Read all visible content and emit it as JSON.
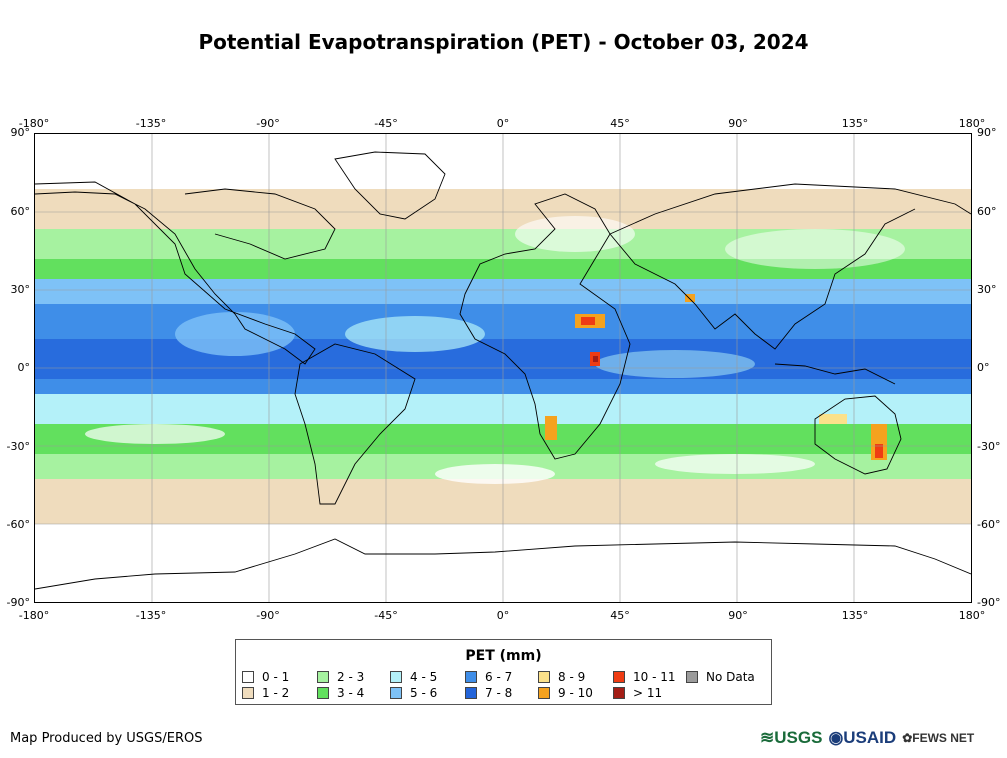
{
  "title": "Potential Evapotranspiration (PET) - October 03, 2024",
  "map": {
    "lon_ticks": [
      "-180°",
      "-135°",
      "-90°",
      "-45°",
      "0°",
      "45°",
      "90°",
      "135°",
      "180°"
    ],
    "lat_ticks": [
      "90°",
      "60°",
      "30°",
      "0°",
      "-30°",
      "-60°",
      "-90°"
    ]
  },
  "legend": {
    "title": "PET (mm)",
    "items": [
      {
        "label": "0 - 1",
        "color": "#ffffff"
      },
      {
        "label": "1 - 2",
        "color": "#efdcbd"
      },
      {
        "label": "2 - 3",
        "color": "#a6f2a0"
      },
      {
        "label": "3 - 4",
        "color": "#62e05e"
      },
      {
        "label": "4 - 5",
        "color": "#b4f1f9"
      },
      {
        "label": "5 - 6",
        "color": "#7ec2f7"
      },
      {
        "label": "6 - 7",
        "color": "#3f8ee8"
      },
      {
        "label": "7 - 8",
        "color": "#2364d9"
      },
      {
        "label": "8 - 9",
        "color": "#fbe18a"
      },
      {
        "label": "9 - 10",
        "color": "#f5a21e"
      },
      {
        "label": "10 - 11",
        "color": "#ef3c13"
      },
      {
        "label": "> 11",
        "color": "#a31d16"
      },
      {
        "label": "No Data",
        "color": "#9b9b9b"
      }
    ]
  },
  "credit": "Map Produced by USGS/EROS",
  "logos": {
    "usgs": "USGS",
    "usaid": "USAID",
    "fews": "FEWS NET"
  }
}
